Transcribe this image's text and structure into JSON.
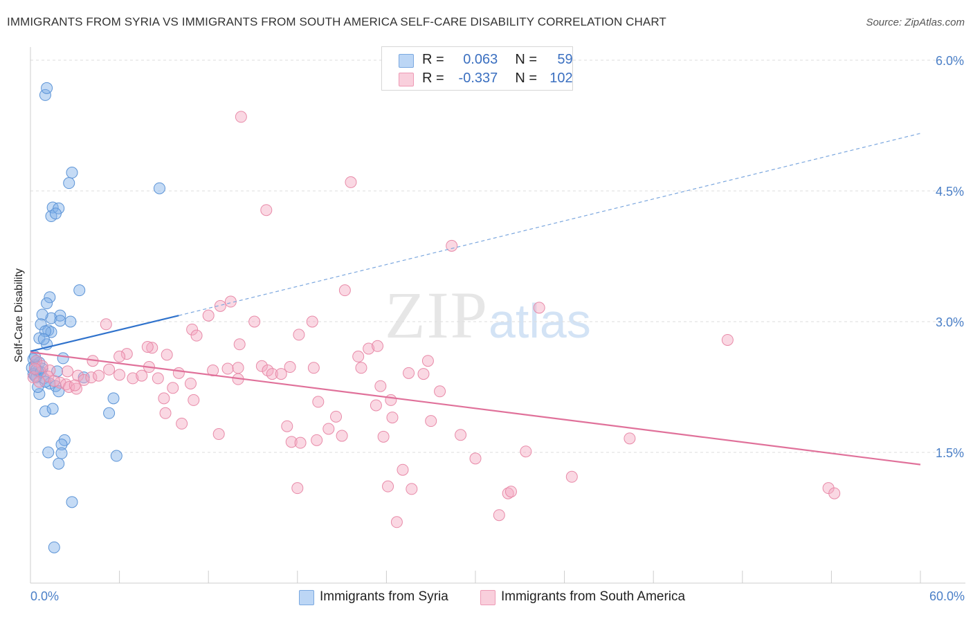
{
  "title": "IMMIGRANTS FROM SYRIA VS IMMIGRANTS FROM SOUTH AMERICA SELF-CARE DISABILITY CORRELATION CHART",
  "source": "Source: ZipAtlas.com",
  "watermark": {
    "zip": "ZIP",
    "atlas": "atlas"
  },
  "legend": {
    "rows": [
      {
        "r_label": "R =",
        "r_value": "0.063",
        "n_label": "N =",
        "n_value": "59",
        "color": "#a8c8f0"
      },
      {
        "r_label": "R =",
        "r_value": "-0.337",
        "n_label": "N =",
        "n_value": "102",
        "color": "#f5b8cc"
      }
    ]
  },
  "bottom_legend": [
    {
      "label": "Immigrants from Syria",
      "color": "#a8c8f0"
    },
    {
      "label": "Immigrants from South America",
      "color": "#f5b8cc"
    }
  ],
  "x_axis": {
    "min_label": "0.0%",
    "max_label": "60.0%"
  },
  "chart_data": {
    "type": "scatter",
    "title": "IMMIGRANTS FROM SYRIA VS IMMIGRANTS FROM SOUTH AMERICA SELF-CARE DISABILITY CORRELATION CHART",
    "xlabel": "",
    "ylabel": "Self-Care Disability",
    "xlim": [
      0,
      60
    ],
    "ylim": [
      0,
      6.2
    ],
    "y_ticks": [
      1.5,
      3.0,
      4.5,
      6.0
    ],
    "y_tick_labels": [
      "1.5%",
      "3.0%",
      "4.5%",
      "6.0%"
    ],
    "x_tick_labels": [
      "0.0%",
      "60.0%"
    ],
    "grid": true,
    "legend_position": "top-center",
    "series": [
      {
        "name": "Immigrants from Syria",
        "color": "#7fb0e8",
        "stroke": "#5b93d6",
        "trend": {
          "x0": 0,
          "y0": 2.66,
          "x1": 10,
          "y1": 3.07,
          "dashed_to_x": 60,
          "dashed_to_y": 5.16
        },
        "points": [
          [
            1.0,
            5.6
          ],
          [
            1.1,
            5.68
          ],
          [
            2.8,
            4.71
          ],
          [
            2.6,
            4.59
          ],
          [
            8.7,
            4.53
          ],
          [
            1.5,
            4.31
          ],
          [
            1.9,
            4.3
          ],
          [
            1.4,
            4.21
          ],
          [
            1.7,
            4.24
          ],
          [
            3.3,
            3.36
          ],
          [
            1.3,
            3.28
          ],
          [
            1.1,
            3.21
          ],
          [
            2.0,
            3.07
          ],
          [
            1.4,
            3.04
          ],
          [
            0.8,
            3.08
          ],
          [
            2.0,
            3.01
          ],
          [
            2.7,
            3.0
          ],
          [
            0.7,
            2.97
          ],
          [
            1.2,
            2.9
          ],
          [
            1.4,
            2.88
          ],
          [
            1.0,
            2.89
          ],
          [
            0.6,
            2.81
          ],
          [
            1.1,
            2.74
          ],
          [
            0.9,
            2.8
          ],
          [
            2.2,
            2.58
          ],
          [
            0.2,
            2.57
          ],
          [
            0.4,
            2.55
          ],
          [
            0.6,
            2.53
          ],
          [
            0.3,
            2.5
          ],
          [
            0.1,
            2.47
          ],
          [
            0.8,
            2.46
          ],
          [
            0.5,
            2.43
          ],
          [
            0.2,
            2.4
          ],
          [
            0.3,
            2.38
          ],
          [
            0.4,
            2.36
          ],
          [
            0.9,
            2.35
          ],
          [
            3.6,
            2.36
          ],
          [
            1.8,
            2.43
          ],
          [
            1.3,
            2.29
          ],
          [
            1.7,
            2.26
          ],
          [
            1.9,
            2.2
          ],
          [
            0.6,
            2.17
          ],
          [
            5.6,
            2.12
          ],
          [
            1.0,
            1.97
          ],
          [
            1.5,
            2.0
          ],
          [
            5.3,
            1.95
          ],
          [
            2.3,
            1.64
          ],
          [
            2.1,
            1.59
          ],
          [
            1.2,
            1.5
          ],
          [
            2.1,
            1.49
          ],
          [
            5.8,
            1.46
          ],
          [
            1.9,
            1.37
          ],
          [
            2.8,
            0.93
          ],
          [
            1.6,
            0.41
          ],
          [
            0.4,
            2.45
          ],
          [
            0.7,
            2.42
          ],
          [
            1.0,
            2.31
          ],
          [
            0.5,
            2.25
          ],
          [
            0.3,
            2.6
          ]
        ]
      },
      {
        "name": "Immigrants from South America",
        "color": "#f5a9c2",
        "stroke": "#e88aa8",
        "trend": {
          "x0": 0,
          "y0": 2.65,
          "x1": 60,
          "y1": 1.36
        },
        "points": [
          [
            14.2,
            5.35
          ],
          [
            21.6,
            4.6
          ],
          [
            15.9,
            4.28
          ],
          [
            28.4,
            3.87
          ],
          [
            21.2,
            3.36
          ],
          [
            34.3,
            3.16
          ],
          [
            13.5,
            3.23
          ],
          [
            12.8,
            3.18
          ],
          [
            12.0,
            3.07
          ],
          [
            15.1,
            3.0
          ],
          [
            19.0,
            3.0
          ],
          [
            10.9,
            2.91
          ],
          [
            5.1,
            2.97
          ],
          [
            18.1,
            2.85
          ],
          [
            11.2,
            2.84
          ],
          [
            8.2,
            2.7
          ],
          [
            7.9,
            2.71
          ],
          [
            6.5,
            2.63
          ],
          [
            14.1,
            2.74
          ],
          [
            22.8,
            2.69
          ],
          [
            23.4,
            2.72
          ],
          [
            47.0,
            2.79
          ],
          [
            9.2,
            2.62
          ],
          [
            6.0,
            2.6
          ],
          [
            4.2,
            2.55
          ],
          [
            5.3,
            2.45
          ],
          [
            12.3,
            2.44
          ],
          [
            13.3,
            2.46
          ],
          [
            14.0,
            2.47
          ],
          [
            15.6,
            2.49
          ],
          [
            16.0,
            2.44
          ],
          [
            17.5,
            2.48
          ],
          [
            19.1,
            2.47
          ],
          [
            22.1,
            2.6
          ],
          [
            22.3,
            2.47
          ],
          [
            26.8,
            2.55
          ],
          [
            25.5,
            2.41
          ],
          [
            26.5,
            2.4
          ],
          [
            1.3,
            2.44
          ],
          [
            2.0,
            2.3
          ],
          [
            2.4,
            2.28
          ],
          [
            2.6,
            2.25
          ],
          [
            3.1,
            2.23
          ],
          [
            3.2,
            2.38
          ],
          [
            3.6,
            2.33
          ],
          [
            4.1,
            2.36
          ],
          [
            4.6,
            2.38
          ],
          [
            6.0,
            2.39
          ],
          [
            6.9,
            2.35
          ],
          [
            7.5,
            2.38
          ],
          [
            8.0,
            2.48
          ],
          [
            8.6,
            2.35
          ],
          [
            10.0,
            2.41
          ],
          [
            10.8,
            2.29
          ],
          [
            14.0,
            2.34
          ],
          [
            16.3,
            2.4
          ],
          [
            16.9,
            2.4
          ],
          [
            23.6,
            2.26
          ],
          [
            9.6,
            2.24
          ],
          [
            9.0,
            2.12
          ],
          [
            11.0,
            2.1
          ],
          [
            19.4,
            2.08
          ],
          [
            23.3,
            2.04
          ],
          [
            27.6,
            2.2
          ],
          [
            24.3,
            2.1
          ],
          [
            9.1,
            1.95
          ],
          [
            10.2,
            1.83
          ],
          [
            17.3,
            1.8
          ],
          [
            20.1,
            1.77
          ],
          [
            20.6,
            1.91
          ],
          [
            24.4,
            1.9
          ],
          [
            27.0,
            1.86
          ],
          [
            12.7,
            1.71
          ],
          [
            21.0,
            1.69
          ],
          [
            23.8,
            1.68
          ],
          [
            29.0,
            1.7
          ],
          [
            17.6,
            1.62
          ],
          [
            18.2,
            1.61
          ],
          [
            19.3,
            1.64
          ],
          [
            40.4,
            1.66
          ],
          [
            30.0,
            1.43
          ],
          [
            33.4,
            1.51
          ],
          [
            25.1,
            1.3
          ],
          [
            18.0,
            1.09
          ],
          [
            24.1,
            1.11
          ],
          [
            25.7,
            1.08
          ],
          [
            32.2,
            1.03
          ],
          [
            32.4,
            1.05
          ],
          [
            36.5,
            1.22
          ],
          [
            53.8,
            1.09
          ],
          [
            54.2,
            1.03
          ],
          [
            24.7,
            0.7
          ],
          [
            31.6,
            0.78
          ],
          [
            0.4,
            2.55
          ],
          [
            0.8,
            2.49
          ],
          [
            1.2,
            2.37
          ],
          [
            0.2,
            2.36
          ],
          [
            1.6,
            2.32
          ],
          [
            0.6,
            2.31
          ],
          [
            2.5,
            2.43
          ],
          [
            3.0,
            2.27
          ],
          [
            0.3,
            2.46
          ]
        ]
      }
    ]
  }
}
